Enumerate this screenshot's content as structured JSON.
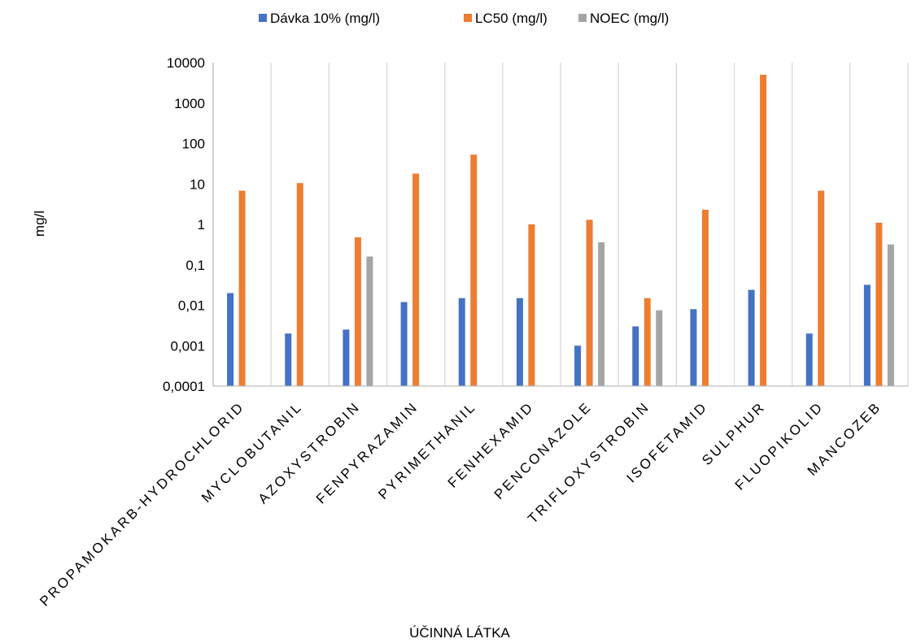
{
  "chart_data": {
    "type": "bar",
    "scale": "log",
    "categories": [
      "PROPAMOKARB-HYDROCHLORID",
      "MYCLOBUTANIL",
      "AZOXYSTROBIN",
      "FENPYRAZAMIN",
      "PYRIMETHANIL",
      "FENHEXAMID",
      "PENCONAZOLE",
      "TRIFLOXYSTROBIN",
      "ISOFETAMID",
      "SULPHUR",
      "FLUOPIKOLID",
      "MANCOZEB"
    ],
    "series": [
      {
        "name": "Dávka 10% (mg/l)",
        "color": "#4472C4",
        "values": [
          0.02,
          0.002,
          0.0025,
          0.012,
          0.015,
          0.015,
          0.001,
          0.003,
          0.008,
          0.024,
          0.002,
          0.032
        ]
      },
      {
        "name": "LC50 (mg/l)",
        "color": "#ED7D31",
        "values": [
          6.8,
          10.5,
          0.48,
          18,
          53,
          1.0,
          1.3,
          0.015,
          2.3,
          5000,
          6.8,
          1.1
        ]
      },
      {
        "name": "NOEC (mg/l)",
        "color": "#A5A5A5",
        "values": [
          null,
          null,
          0.16,
          null,
          null,
          null,
          0.36,
          0.0075,
          null,
          null,
          null,
          0.32
        ]
      }
    ],
    "y_ticks": [
      "0,0001",
      "0,001",
      "0,01",
      "0,1",
      "1",
      "10",
      "100",
      "1000",
      "10000"
    ],
    "ylim": [
      0.0001,
      10000
    ],
    "xlabel": "ÚČINNÁ LÁTKA",
    "ylabel": "mg/l",
    "legend_position": "top",
    "grid": "vertical"
  }
}
